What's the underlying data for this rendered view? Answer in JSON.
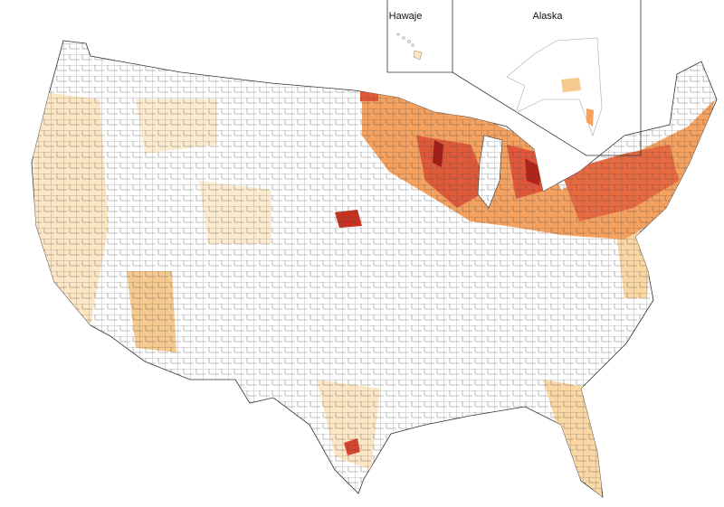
{
  "insets": [
    {
      "label": "Hawaje"
    },
    {
      "label": "Alaska"
    }
  ]
}
